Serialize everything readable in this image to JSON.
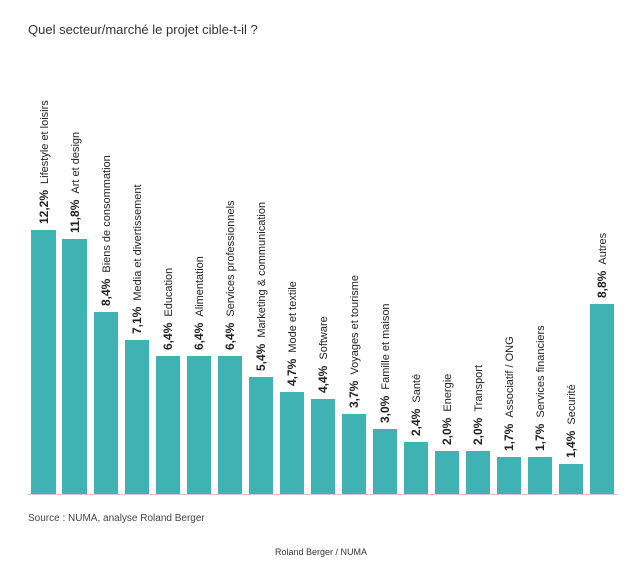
{
  "title": "Quel secteur/marché le projet cible-t-il ?",
  "source": "Source : NUMA, analyse Roland Berger",
  "footer": "Roland Berger / NUMA",
  "chart": {
    "type": "bar",
    "bar_color": "#3fb3b3",
    "background_color": "#ffffff",
    "max_value": 12.2,
    "label_rotation_deg": -90,
    "pct_fontsize": 12,
    "pct_fontweight": 700,
    "cat_fontsize": 11,
    "title_fontsize": 13,
    "baseline_color": "#cccccc",
    "bars": [
      {
        "pct": "12,2%",
        "value": 12.2,
        "label": "Lifestyle et loisirs"
      },
      {
        "pct": "11,8%",
        "value": 11.8,
        "label": "Art et design"
      },
      {
        "pct": "8,4%",
        "value": 8.4,
        "label": "Biens de consommation"
      },
      {
        "pct": "7,1%",
        "value": 7.1,
        "label": "Media et divertissement"
      },
      {
        "pct": "6,4%",
        "value": 6.4,
        "label": "Education"
      },
      {
        "pct": "6,4%",
        "value": 6.4,
        "label": "Alimentation"
      },
      {
        "pct": "6,4%",
        "value": 6.4,
        "label": "Services professionnels"
      },
      {
        "pct": "5,4%",
        "value": 5.4,
        "label": "Marketing & communication"
      },
      {
        "pct": "4,7%",
        "value": 4.7,
        "label": "Mode et textile"
      },
      {
        "pct": "4,4%",
        "value": 4.4,
        "label": "Software"
      },
      {
        "pct": "3,7%",
        "value": 3.7,
        "label": "Voyages et tourisme"
      },
      {
        "pct": "3,0%",
        "value": 3.0,
        "label": "Famille et maison"
      },
      {
        "pct": "2,4%",
        "value": 2.4,
        "label": "Santé"
      },
      {
        "pct": "2,0%",
        "value": 2.0,
        "label": "Energie"
      },
      {
        "pct": "2,0%",
        "value": 2.0,
        "label": "Transport"
      },
      {
        "pct": "1,7%",
        "value": 1.7,
        "label": "Associatif / ONG"
      },
      {
        "pct": "1,7%",
        "value": 1.7,
        "label": "Services financiers"
      },
      {
        "pct": "1,4%",
        "value": 1.4,
        "label": "Securité"
      },
      {
        "pct": "8,8%",
        "value": 8.8,
        "label": "Autres"
      }
    ]
  }
}
